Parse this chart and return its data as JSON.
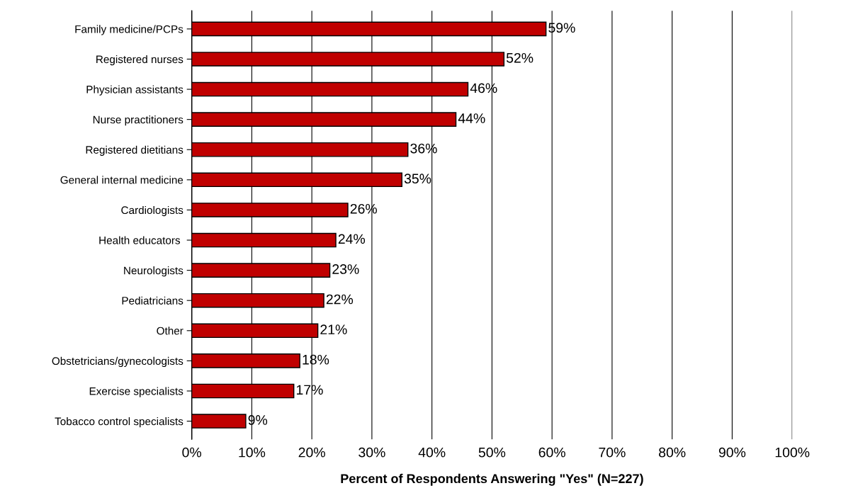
{
  "chart_data": {
    "type": "bar",
    "orientation": "horizontal",
    "xlabel": "Percent of Respondents Answering \"Yes\" (N=227)",
    "categories": [
      "Family medicine/PCPs",
      "Registered nurses",
      "Physician assistants",
      "Nurse practitioners",
      "Registered dietitians",
      "General internal medicine",
      "Cardiologists",
      "Health educators ",
      "Neurologists",
      "Pediatricians",
      "Other",
      "Obstetricians/gynecologists",
      "Exercise specialists",
      "Tobacco control specialists"
    ],
    "values": [
      59,
      52,
      46,
      44,
      36,
      35,
      26,
      24,
      23,
      22,
      21,
      18,
      17,
      9
    ],
    "value_labels": [
      "59%",
      "52%",
      "46%",
      "44%",
      "36%",
      "35%",
      "26%",
      "24%",
      "23%",
      "22%",
      "21%",
      "18%",
      "17%",
      "9%"
    ],
    "color": "#c00000",
    "xlim": [
      0,
      100
    ],
    "xticks": [
      {
        "value": 0,
        "label": "0%"
      },
      {
        "value": 10,
        "label": "10%"
      },
      {
        "value": 20,
        "label": "20%"
      },
      {
        "value": 30,
        "label": "30%"
      },
      {
        "value": 40,
        "label": "40%"
      },
      {
        "value": 50,
        "label": "50%"
      },
      {
        "value": 60,
        "label": "60%"
      },
      {
        "value": 70,
        "label": "70%"
      },
      {
        "value": 80,
        "label": "80%"
      },
      {
        "value": 90,
        "label": "90%"
      },
      {
        "value": 100,
        "label": "100%"
      }
    ],
    "grid": "x",
    "legend": false
  }
}
